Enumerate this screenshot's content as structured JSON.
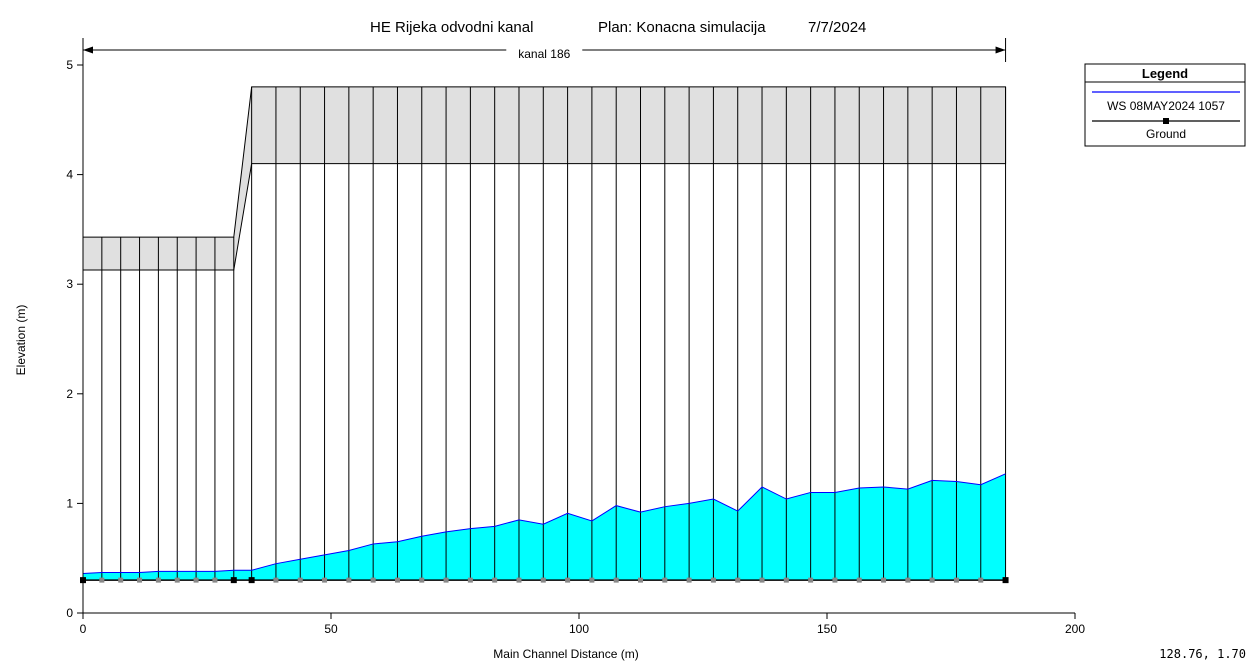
{
  "chart_data": {
    "type": "line",
    "title_parts": [
      "HE Rijeka odvodni kanal",
      "Plan: Konacna simulacija",
      "7/7/2024"
    ],
    "xlabel": "Main Channel Distance (m)",
    "ylabel": "Elevation (m)",
    "xlim": [
      0,
      200
    ],
    "ylim": [
      0,
      5
    ],
    "x_ticks": [
      0,
      50,
      100,
      150,
      200
    ],
    "y_ticks": [
      0,
      1,
      2,
      3,
      4,
      5
    ],
    "reach_label": "kanal 186",
    "reach_extent": [
      0,
      186
    ],
    "legend": {
      "title": "Legend",
      "position": "right",
      "entries": [
        {
          "label": "WS  08MAY2024 1057",
          "color": "#0000ff"
        },
        {
          "label": "Ground",
          "color": "#000000"
        }
      ]
    },
    "colors": {
      "water_fill": "#00ffff",
      "water_line": "#0000ff",
      "deck_fill": "#e0e0e0",
      "ground": "#000000"
    },
    "ground_elevation": 0.3,
    "cross_sections": [
      0,
      3.8,
      7.6,
      11.4,
      15.2,
      19,
      22.8,
      26.6,
      30.4,
      34,
      38.9,
      43.8,
      48.7,
      53.6,
      58.5,
      63.4,
      68.3,
      73.2,
      78.1,
      83,
      87.9,
      92.8,
      97.7,
      102.6,
      107.5,
      112.4,
      117.3,
      122.2,
      127.1,
      132,
      136.9,
      141.8,
      146.7,
      151.6,
      156.5,
      161.4,
      166.3,
      171.2,
      176.1,
      181,
      186
    ],
    "bridge_stations_left": [
      0,
      3.8,
      7.6,
      11.4,
      15.2,
      19,
      22.8,
      26.6,
      30.4
    ],
    "bridge_stations_right": [
      34,
      38.9,
      43.8,
      48.7,
      53.6,
      58.5,
      63.4,
      68.3,
      73.2,
      78.1,
      83,
      87.9,
      92.8,
      97.7,
      102.6,
      107.5,
      112.4,
      117.3,
      122.2,
      127.1,
      132,
      136.9,
      141.8,
      146.7,
      151.6,
      156.5,
      161.4,
      166.3,
      171.2,
      176.1,
      181,
      186
    ],
    "bridge_low_chord_left": 3.13,
    "bridge_high_chord_left": 3.43,
    "bridge_low_chord_right": 4.1,
    "bridge_high_chord_right": 4.8,
    "series": [
      {
        "name": "WS  08MAY2024 1057",
        "x": [
          0,
          3.8,
          7.6,
          11.4,
          15.2,
          19,
          22.8,
          26.6,
          30.4,
          34,
          38.9,
          43.8,
          48.7,
          53.6,
          58.5,
          63.4,
          68.3,
          73.2,
          78.1,
          83,
          87.9,
          92.8,
          97.7,
          102.6,
          107.5,
          112.4,
          117.3,
          122.2,
          127.1,
          132,
          136.9,
          141.8,
          146.7,
          151.6,
          156.5,
          161.4,
          166.3,
          171.2,
          176.1,
          181,
          186
        ],
        "y": [
          0.36,
          0.37,
          0.37,
          0.37,
          0.38,
          0.38,
          0.38,
          0.38,
          0.39,
          0.39,
          0.45,
          0.49,
          0.53,
          0.57,
          0.63,
          0.65,
          0.7,
          0.74,
          0.77,
          0.79,
          0.85,
          0.81,
          0.91,
          0.84,
          0.98,
          0.92,
          0.97,
          1.0,
          1.04,
          0.93,
          1.15,
          1.04,
          1.1,
          1.1,
          1.14,
          1.15,
          1.13,
          1.21,
          1.2,
          1.17,
          1.27
        ]
      },
      {
        "name": "Ground",
        "x": [
          0,
          186
        ],
        "y": [
          0.3,
          0.3
        ]
      }
    ]
  },
  "cursor_readout": "128.76, 1.70"
}
